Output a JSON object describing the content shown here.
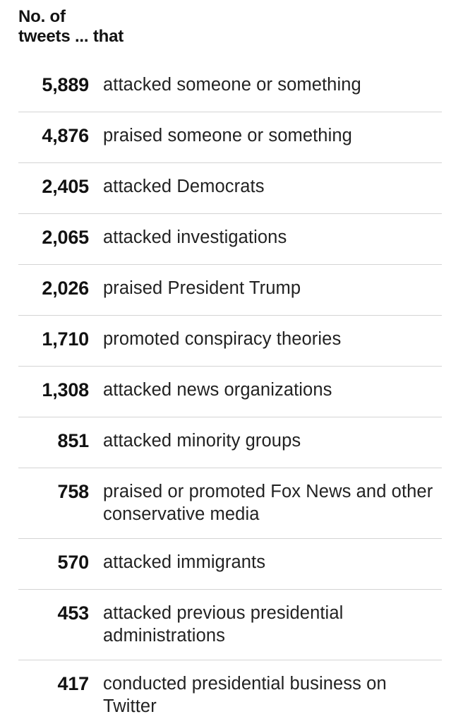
{
  "chart_data": {
    "type": "table",
    "title": "",
    "column_header": "No. of\ntweets ... that",
    "categories": [
      "attacked someone or something",
      "praised someone or something",
      "attacked Democrats",
      "attacked investigations",
      "praised President Trump",
      "promoted conspiracy theories",
      "attacked news organizations",
      "attacked minority groups",
      "praised or promoted Fox News and other conservative media",
      "attacked immigrants",
      "attacked previous presidential administrations",
      "conducted presidential business on Twitter"
    ],
    "values": [
      5889,
      4876,
      2405,
      2065,
      2026,
      1710,
      1308,
      851,
      758,
      570,
      453,
      417
    ],
    "value_labels": [
      "5,889",
      "4,876",
      "2,405",
      "2,065",
      "2,026",
      "1,710",
      "1,308",
      "851",
      "758",
      "570",
      "453",
      "417"
    ]
  }
}
